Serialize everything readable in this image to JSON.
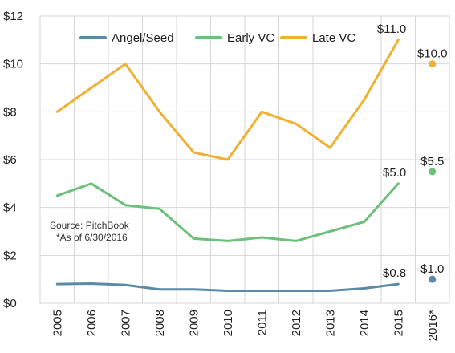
{
  "chart_data": {
    "type": "line",
    "categories": [
      "2005",
      "2006",
      "2007",
      "2008",
      "2009",
      "2010",
      "2011",
      "2012",
      "2013",
      "2014",
      "2015",
      "2016*"
    ],
    "y_tick_labels": [
      "$0",
      "$2",
      "$4",
      "$6",
      "$8",
      "$10",
      "$12"
    ],
    "y_ticks": [
      0,
      2,
      4,
      6,
      8,
      10,
      12
    ],
    "ylim": [
      0,
      12
    ],
    "grid": "horizontal",
    "legend_position": "top",
    "series": [
      {
        "name": "Angel/Seed",
        "color": "#5b8aa6",
        "values": [
          0.8,
          0.82,
          0.76,
          0.58,
          0.58,
          0.52,
          0.52,
          0.52,
          0.52,
          0.62,
          0.8,
          null
        ],
        "point_2016": 1.0,
        "end_label_2015": "$0.8",
        "label_2016": "$1.0"
      },
      {
        "name": "Early VC",
        "color": "#6cc07a",
        "values": [
          4.5,
          5.0,
          4.1,
          3.95,
          2.7,
          2.6,
          2.75,
          2.6,
          3.0,
          3.4,
          5.0,
          null
        ],
        "point_2016": 5.5,
        "end_label_2015": "$5.0",
        "label_2016": "$5.5"
      },
      {
        "name": "Late VC",
        "color": "#f0b030",
        "values": [
          8.0,
          9.0,
          10.0,
          8.0,
          6.3,
          6.0,
          8.0,
          7.5,
          6.5,
          8.5,
          11.0,
          null
        ],
        "point_2016": 10.0,
        "end_label_2015": "$11.0",
        "label_2016": "$10.0"
      }
    ],
    "source_line1": "Source: PitchBook",
    "source_line2": "*As of 6/30/2016"
  }
}
